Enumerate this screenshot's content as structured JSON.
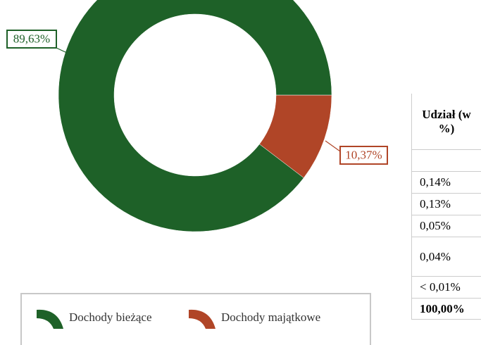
{
  "chart_data": {
    "type": "donut",
    "categories": [
      "Dochody bieżące",
      "Dochody majątkowe"
    ],
    "values": [
      89.63,
      10.37
    ],
    "value_labels": [
      "89,63%",
      "10,37%"
    ],
    "colors": [
      "#1e6128",
      "#b04527"
    ],
    "legend": "bottom"
  },
  "table": {
    "header": "Udział (w %)",
    "rows": [
      "0,14%",
      "0,13%",
      "0,05%",
      "0,04%",
      "< 0,01%",
      "100,00%"
    ]
  }
}
